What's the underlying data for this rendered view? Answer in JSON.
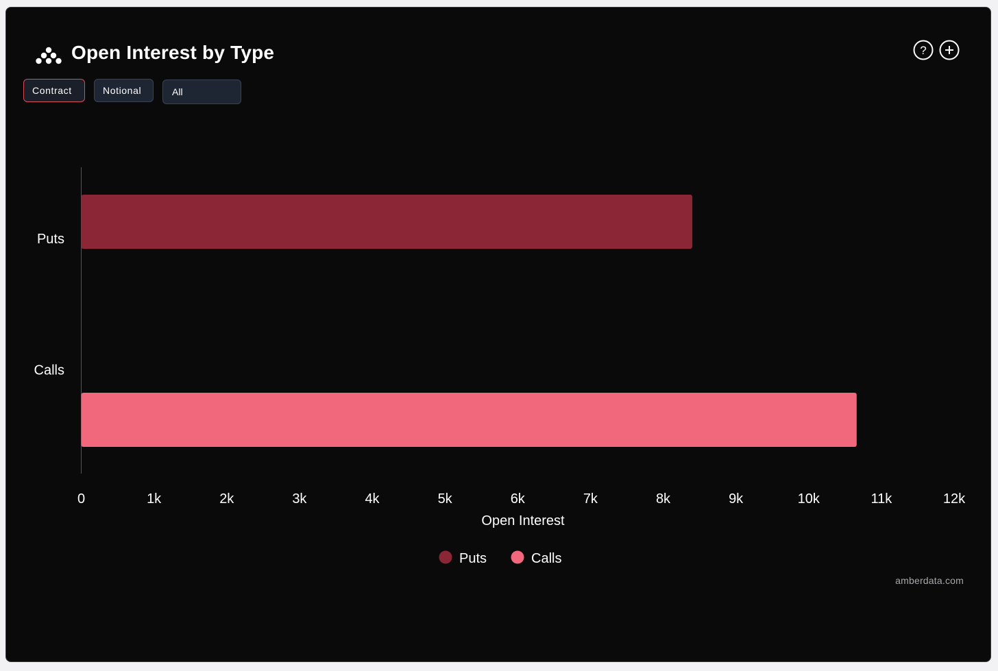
{
  "header": {
    "title": "Open Interest by Type",
    "logo_icon": "amberdata-logo-icon",
    "help_icon": "question-circle-icon",
    "add_icon": "plus-circle-icon"
  },
  "controls": {
    "tabs": [
      {
        "label": "Contract",
        "active": true
      },
      {
        "label": "Notional",
        "active": false
      }
    ],
    "filter_selected": "All"
  },
  "chart_data": {
    "type": "bar",
    "orientation": "horizontal",
    "categories": [
      "Puts",
      "Calls"
    ],
    "series": [
      {
        "name": "Puts",
        "color": "#8b2636",
        "values": [
          8400,
          null
        ]
      },
      {
        "name": "Calls",
        "color": "#f1687c",
        "values": [
          null,
          10660
        ]
      }
    ],
    "xlabel": "Open Interest",
    "ylabel": "",
    "xlim": [
      0,
      12000
    ],
    "xticks": [
      "0",
      "1k",
      "2k",
      "3k",
      "4k",
      "5k",
      "6k",
      "7k",
      "8k",
      "9k",
      "10k",
      "11k",
      "12k"
    ],
    "grid": false,
    "legend": "bottom-center"
  },
  "footer": {
    "source": "amberdata.com"
  }
}
